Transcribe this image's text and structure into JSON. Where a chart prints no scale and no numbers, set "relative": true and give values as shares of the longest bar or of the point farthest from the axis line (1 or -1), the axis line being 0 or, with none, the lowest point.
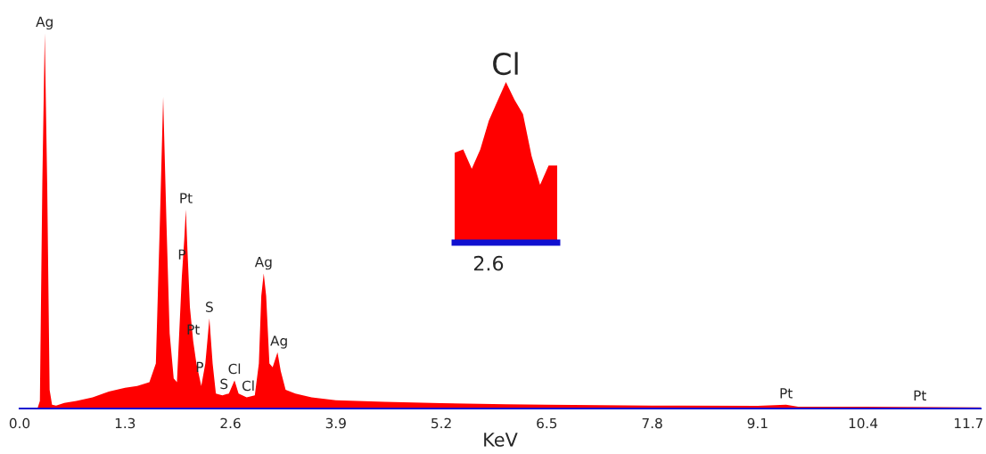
{
  "chart_data": [
    {
      "type": "area",
      "relative": true,
      "xlabel": "KeV",
      "xlim": [
        0,
        11.85
      ],
      "xticks": [
        {
          "value": 0,
          "label": "0.0"
        },
        {
          "value": 1.3,
          "label": "1.3"
        },
        {
          "value": 2.6,
          "label": "2.6"
        },
        {
          "value": 3.9,
          "label": "3.9"
        },
        {
          "value": 5.2,
          "label": "5.2"
        },
        {
          "value": 6.5,
          "label": "6.5"
        },
        {
          "value": 7.8,
          "label": "7.8"
        },
        {
          "value": 9.1,
          "label": "9.1"
        },
        {
          "value": 10.4,
          "label": "10.4"
        },
        {
          "value": 11.7,
          "label": "11.7"
        }
      ],
      "tick_labels": "x",
      "grid": false,
      "series": [
        {
          "color": "#ff0000",
          "x": [
            0.22,
            0.25,
            0.28,
            0.31,
            0.34,
            0.37,
            0.4,
            0.45,
            0.55,
            0.7,
            0.9,
            1.1,
            1.3,
            1.45,
            1.6,
            1.68,
            1.73,
            1.77,
            1.81,
            1.85,
            1.9,
            1.94,
            2.0,
            2.03,
            2.05,
            2.07,
            2.1,
            2.14,
            2.18,
            2.24,
            2.29,
            2.34,
            2.38,
            2.42,
            2.5,
            2.58,
            2.65,
            2.7,
            2.8,
            2.9,
            2.95,
            2.98,
            3.01,
            3.04,
            3.08,
            3.12,
            3.18,
            3.22,
            3.28,
            3.4,
            3.6,
            3.9,
            4.5,
            5.2,
            6.0,
            6.5,
            7.8,
            9.1,
            9.45,
            9.6,
            10.4,
            11.0,
            11.85
          ],
          "values": [
            0.0,
            0.02,
            0.6,
            1.0,
            0.6,
            0.05,
            0.01,
            0.008,
            0.015,
            0.02,
            0.03,
            0.045,
            0.055,
            0.06,
            0.07,
            0.12,
            0.5,
            0.83,
            0.5,
            0.2,
            0.08,
            0.07,
            0.35,
            0.45,
            0.53,
            0.42,
            0.27,
            0.18,
            0.12,
            0.06,
            0.12,
            0.24,
            0.12,
            0.04,
            0.035,
            0.04,
            0.075,
            0.04,
            0.03,
            0.035,
            0.12,
            0.3,
            0.36,
            0.3,
            0.12,
            0.11,
            0.15,
            0.1,
            0.05,
            0.04,
            0.03,
            0.022,
            0.018,
            0.014,
            0.011,
            0.01,
            0.008,
            0.007,
            0.01,
            0.005,
            0.005,
            0.004,
            0.003
          ]
        }
      ],
      "annotations": [
        {
          "text": "Ag",
          "x": 0.31,
          "y": 1.0
        },
        {
          "text": "Pt",
          "x": 2.05,
          "y": 0.53
        },
        {
          "text": "P",
          "x": 2.0,
          "y": 0.38
        },
        {
          "text": "Pt",
          "x": 2.14,
          "y": 0.18
        },
        {
          "text": "P",
          "x": 2.22,
          "y": 0.08
        },
        {
          "text": "S",
          "x": 2.34,
          "y": 0.24
        },
        {
          "text": "S",
          "x": 2.52,
          "y": 0.035
        },
        {
          "text": "Cl",
          "x": 2.65,
          "y": 0.075
        },
        {
          "text": "Cl",
          "x": 2.82,
          "y": 0.03
        },
        {
          "text": "Ag",
          "x": 3.01,
          "y": 0.36
        },
        {
          "text": "Ag",
          "x": 3.2,
          "y": 0.15
        },
        {
          "text": "Pt",
          "x": 9.45,
          "y": 0.01
        },
        {
          "text": "Pt",
          "x": 11.1,
          "y": 0.004
        }
      ]
    },
    {
      "type": "area",
      "relative": true,
      "title": "Cl",
      "categories": [
        null,
        null,
        null,
        null,
        null,
        null,
        null,
        null,
        null,
        null,
        null,
        null,
        null
      ],
      "tick_labels": false,
      "grid": false,
      "series": [
        {
          "color": "#ff0000",
          "values": [
            0.56,
            0.58,
            0.46,
            0.58,
            0.76,
            0.88,
            1.0,
            0.89,
            0.8,
            0.54,
            0.36,
            0.48,
            0.48
          ]
        }
      ],
      "annotations": [
        "2.6"
      ]
    }
  ]
}
